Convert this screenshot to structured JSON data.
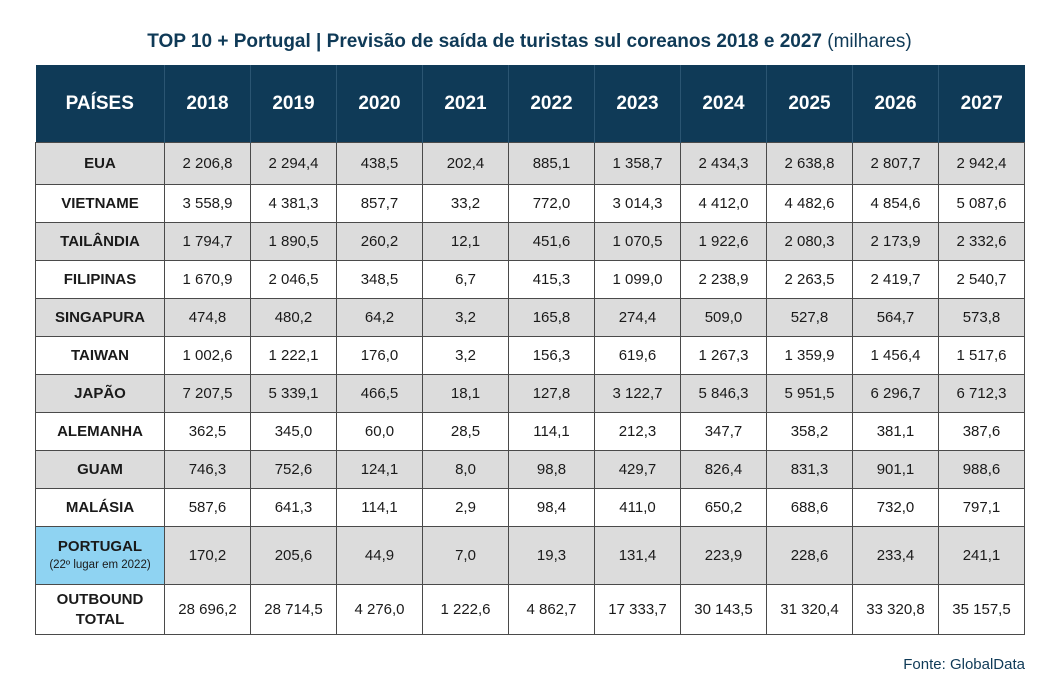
{
  "title": {
    "main": "TOP 10 + Portugal | Previsão de saída de turistas sul coreanos 2018 e 2027",
    "unit": "(milhares)"
  },
  "source": "Fonte: GlobalData",
  "colors": {
    "header": "#0f3a57",
    "highlight": "#8fd3f2",
    "stripe": "#dcdcdc"
  },
  "chart_data": {
    "type": "table",
    "columns": [
      "PAÍSES",
      "2018",
      "2019",
      "2020",
      "2021",
      "2022",
      "2023",
      "2024",
      "2025",
      "2026",
      "2027"
    ],
    "rows": [
      {
        "country": "EUA",
        "values": [
          "2 206,8",
          "2 294,4",
          "438,5",
          "202,4",
          "885,1",
          "1 358,7",
          "2 434,3",
          "2 638,8",
          "2 807,7",
          "2 942,4"
        ]
      },
      {
        "country": "VIETNAME",
        "values": [
          "3 558,9",
          "4 381,3",
          "857,7",
          "33,2",
          "772,0",
          "3 014,3",
          "4 412,0",
          "4 482,6",
          "4 854,6",
          "5 087,6"
        ]
      },
      {
        "country": "TAILÂNDIA",
        "values": [
          "1 794,7",
          "1 890,5",
          "260,2",
          "12,1",
          "451,6",
          "1 070,5",
          "1 922,6",
          "2 080,3",
          "2 173,9",
          "2 332,6"
        ]
      },
      {
        "country": "FILIPINAS",
        "values": [
          "1 670,9",
          "2 046,5",
          "348,5",
          "6,7",
          "415,3",
          "1 099,0",
          "2 238,9",
          "2 263,5",
          "2 419,7",
          "2 540,7"
        ]
      },
      {
        "country": "SINGAPURA",
        "values": [
          "474,8",
          "480,2",
          "64,2",
          "3,2",
          "165,8",
          "274,4",
          "509,0",
          "527,8",
          "564,7",
          "573,8"
        ]
      },
      {
        "country": "TAIWAN",
        "values": [
          "1 002,6",
          "1 222,1",
          "176,0",
          "3,2",
          "156,3",
          "619,6",
          "1 267,3",
          "1 359,9",
          "1 456,4",
          "1 517,6"
        ]
      },
      {
        "country": "JAPÃO",
        "values": [
          "7 207,5",
          "5 339,1",
          "466,5",
          "18,1",
          "127,8",
          "3 122,7",
          "5 846,3",
          "5 951,5",
          "6 296,7",
          "6 712,3"
        ]
      },
      {
        "country": "ALEMANHA",
        "values": [
          "362,5",
          "345,0",
          "60,0",
          "28,5",
          "114,1",
          "212,3",
          "347,7",
          "358,2",
          "381,1",
          "387,6"
        ]
      },
      {
        "country": "GUAM",
        "values": [
          "746,3",
          "752,6",
          "124,1",
          "8,0",
          "98,8",
          "429,7",
          "826,4",
          "831,3",
          "901,1",
          "988,6"
        ]
      },
      {
        "country": "MALÁSIA",
        "values": [
          "587,6",
          "641,3",
          "114,1",
          "2,9",
          "98,4",
          "411,0",
          "650,2",
          "688,6",
          "732,0",
          "797,1"
        ]
      },
      {
        "country": "PORTUGAL",
        "note": "(22º lugar em 2022)",
        "values": [
          "170,2",
          "205,6",
          "44,9",
          "7,0",
          "19,3",
          "131,4",
          "223,9",
          "228,6",
          "233,4",
          "241,1"
        ]
      },
      {
        "country": "OUTBOUND TOTAL",
        "country_line1": "OUTBOUND",
        "country_line2": "TOTAL",
        "values": [
          "28 696,2",
          "28 714,5",
          "4 276,0",
          "1 222,6",
          "4 862,7",
          "17 333,7",
          "30 143,5",
          "31 320,4",
          "33 320,8",
          "35 157,5"
        ]
      }
    ]
  }
}
